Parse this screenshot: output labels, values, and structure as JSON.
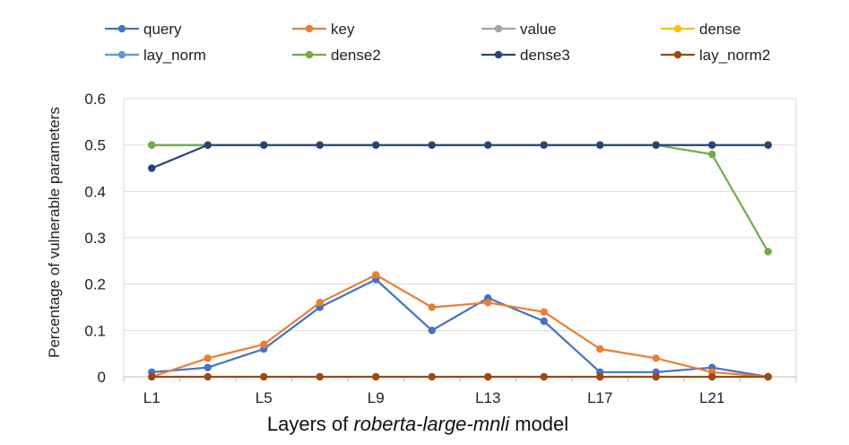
{
  "chart_data": {
    "type": "line",
    "title": "",
    "xlabel_parts": [
      "Layers of ",
      "roberta-large-mnli",
      " model"
    ],
    "ylabel": "Percentage of vulnerable parameters",
    "x": [
      "L1",
      "L3",
      "L5",
      "L7",
      "L9",
      "L11",
      "L13",
      "L15",
      "L17",
      "L19",
      "L21",
      "L23"
    ],
    "x_tick_labels": [
      "L1",
      "L5",
      "L9",
      "L13",
      "L17",
      "L21"
    ],
    "ylim": [
      0,
      0.6
    ],
    "y_ticks": [
      "0",
      "0.1",
      "0.2",
      "0.3",
      "0.4",
      "0.5",
      "0.6"
    ],
    "grid": "horizontal",
    "legend": "top",
    "series": [
      {
        "name": "query",
        "color": "#4472C4",
        "values": [
          0.01,
          0.02,
          0.06,
          0.15,
          0.21,
          0.1,
          0.17,
          0.12,
          0.01,
          0.01,
          0.02,
          0.0
        ]
      },
      {
        "name": "key",
        "color": "#ED7D31",
        "values": [
          0.0,
          0.04,
          0.07,
          0.16,
          0.22,
          0.15,
          0.16,
          0.14,
          0.06,
          0.04,
          0.01,
          0.0
        ]
      },
      {
        "name": "value",
        "color": "#A5A5A5",
        "values": [
          0.5,
          0.5,
          0.5,
          0.5,
          0.5,
          0.5,
          0.5,
          0.5,
          0.5,
          0.5,
          0.5,
          0.5
        ]
      },
      {
        "name": "dense",
        "color": "#FFC000",
        "values": [
          0.5,
          0.5,
          0.5,
          0.5,
          0.5,
          0.5,
          0.5,
          0.5,
          0.5,
          0.5,
          0.5,
          0.5
        ]
      },
      {
        "name": "lay_norm",
        "color": "#5B9BD5",
        "values": [
          0.5,
          0.5,
          0.5,
          0.5,
          0.5,
          0.5,
          0.5,
          0.5,
          0.5,
          0.5,
          0.5,
          0.5
        ]
      },
      {
        "name": "dense2",
        "color": "#70AD47",
        "values": [
          0.5,
          0.5,
          0.5,
          0.5,
          0.5,
          0.5,
          0.5,
          0.5,
          0.5,
          0.5,
          0.48,
          0.27
        ]
      },
      {
        "name": "dense3",
        "color": "#264478",
        "values": [
          0.45,
          0.5,
          0.5,
          0.5,
          0.5,
          0.5,
          0.5,
          0.5,
          0.5,
          0.5,
          0.5,
          0.5
        ]
      },
      {
        "name": "lay_norm2",
        "color": "#9E480E",
        "values": [
          0,
          0,
          0,
          0,
          0,
          0,
          0,
          0,
          0,
          0,
          0,
          0
        ]
      }
    ]
  }
}
